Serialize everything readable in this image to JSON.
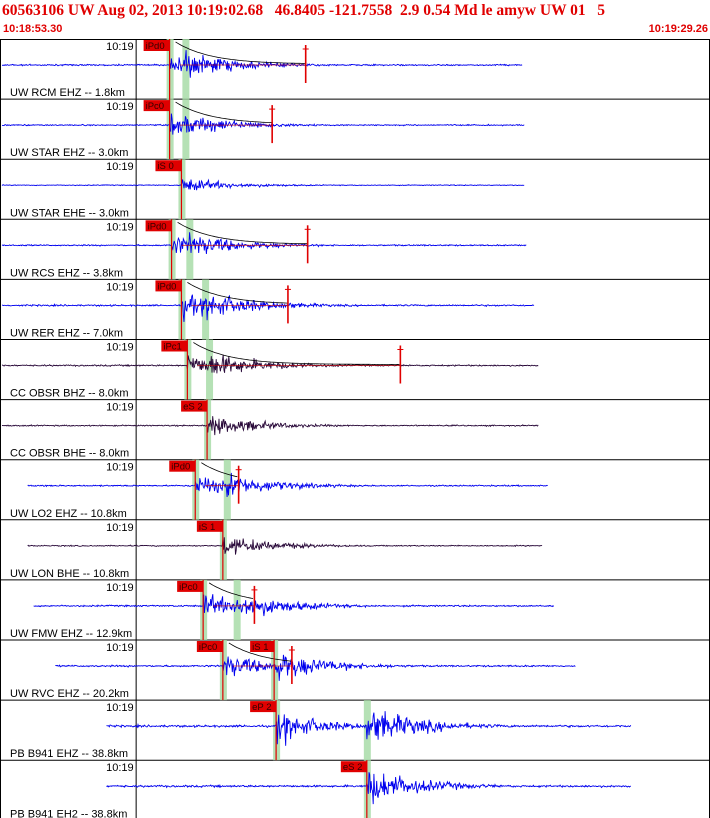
{
  "header": {
    "title": "60563106 UW Aug 02, 2013 10:19:02.68   46.8405 -121.7558  2.9 0.54 Md le amyw UW 01   5",
    "start_time": "10:18:53.30",
    "end_time": "10:19:29.26"
  },
  "colors": {
    "header_text": "#e00000",
    "trace_blue": "#0000ee",
    "trace_dark": "#2a0a3a",
    "pick_box": "#e00000",
    "pick_window": "#a8dca8",
    "grid": "#000000"
  },
  "chart_data": {
    "type": "line",
    "chart_kind": "seismogram record section",
    "x_unit": "time",
    "x_range": [
      "10:18:53.30",
      "10:19:29.26"
    ],
    "minute_label": "10:19",
    "traces": [
      {
        "label": "UW RCM EHZ -- 1.8km",
        "pick": "iPd0",
        "pick_time_s": 8.6,
        "s_time_s": 9.4,
        "coda_mark_s": 15.5,
        "start_s": 0.0,
        "end_s": 26.5,
        "amplitude": 0.65,
        "color": "blue",
        "cur_end_s": 10.5
      },
      {
        "label": "UW STAR EHZ -- 3.0km",
        "pick": "iPc0",
        "pick_time_s": 8.6,
        "s_time_s": 9.4,
        "coda_mark_s": 13.8,
        "start_s": 0.0,
        "end_s": 26.6,
        "amplitude": 0.55,
        "color": "blue"
      },
      {
        "label": "UW STAR EHE -- 3.0km",
        "pick": "iS 0",
        "pick_time_s": 9.2,
        "s_time_s": 9.2,
        "start_s": 0.0,
        "end_s": 26.6,
        "amplitude": 0.35,
        "color": "blue"
      },
      {
        "label": "UW RCS EHZ -- 3.8km",
        "pick": "iPd0",
        "pick_time_s": 8.7,
        "s_time_s": 9.6,
        "coda_mark_s": 15.6,
        "start_s": 0.0,
        "end_s": 26.7,
        "amplitude": 0.6,
        "color": "blue"
      },
      {
        "label": "UW RER EHZ -- 7.0km",
        "pick": "iPd0",
        "pick_time_s": 9.2,
        "s_time_s": 10.4,
        "coda_mark_s": 14.6,
        "start_s": 0.0,
        "end_s": 27.1,
        "amplitude": 0.7,
        "color": "blue",
        "cur_end_s": 10.8
      },
      {
        "label": "CC OBSR BHZ -- 8.0km",
        "pick": "iPc1",
        "pick_time_s": 9.5,
        "s_time_s": 10.6,
        "coda_mark_s": 20.3,
        "start_s": 0.0,
        "end_s": 27.3,
        "amplitude": 0.65,
        "color": "dark"
      },
      {
        "label": "CC OBSR BHE -- 8.0km",
        "pick": "eS 2",
        "pick_time_s": 10.5,
        "s_time_s": 10.5,
        "start_s": 0.0,
        "end_s": 27.3,
        "amplitude": 0.55,
        "color": "dark"
      },
      {
        "label": "UW LO2 EHZ -- 10.8km",
        "pick": "iPd0",
        "pick_time_s": 9.9,
        "s_time_s": 11.5,
        "coda_mark_s": 12.1,
        "start_s": 1.3,
        "end_s": 27.8,
        "amplitude": 0.6,
        "color": "blue",
        "cur_end_s": 12.6
      },
      {
        "label": "UW LON BHE -- 10.8km",
        "pick": "iS 1",
        "pick_time_s": 11.3,
        "s_time_s": 11.3,
        "start_s": 1.3,
        "end_s": 27.5,
        "amplitude": 0.5,
        "color": "dark"
      },
      {
        "label": "UW FMW EHZ -- 12.9km",
        "pick": "iPc0",
        "pick_time_s": 10.3,
        "s_time_s": 12.0,
        "coda_mark_s": 12.9,
        "start_s": 1.6,
        "end_s": 28.1,
        "amplitude": 0.7,
        "color": "blue",
        "cur_end_s": 13.0
      },
      {
        "label": "UW RVC EHZ -- 20.2km",
        "pick": "iPc0",
        "pick_time_s": 11.3,
        "pick2": "iS 1",
        "pick2_time_s": 13.9,
        "s_time_s": 13.9,
        "coda_mark_s": 14.8,
        "start_s": 2.7,
        "end_s": 29.2,
        "amplitude": 0.75,
        "color": "blue",
        "cur_end_s": 15.0
      },
      {
        "label": "PB B941 EHZ -- 38.8km",
        "pick": "eP 2",
        "pick_time_s": 14.0,
        "s_time_s": 18.6,
        "start_s": 5.3,
        "end_s": 32.0,
        "amplitude": 0.95,
        "color": "blue"
      },
      {
        "label": "PB B941 EH2 -- 38.8km",
        "pick": "eS 2",
        "pick_time_s": 18.6,
        "s_time_s": 18.6,
        "start_s": 5.3,
        "end_s": 32.0,
        "amplitude": 0.9,
        "color": "blue"
      }
    ]
  }
}
